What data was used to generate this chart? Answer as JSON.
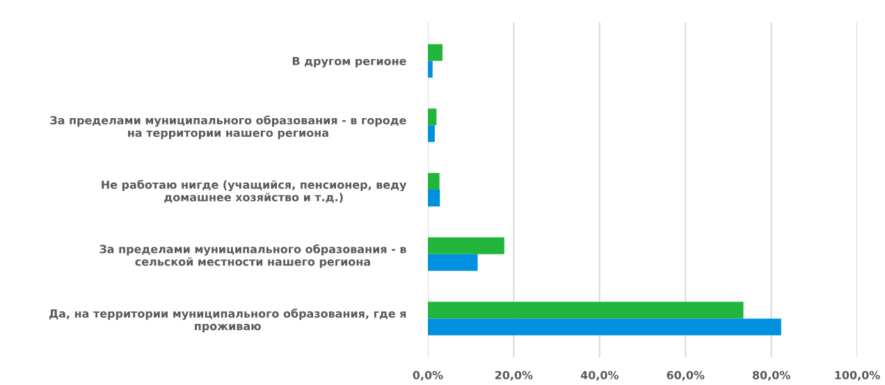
{
  "chart_data": {
    "type": "bar",
    "orientation": "horizontal",
    "categories": [
      "В другом регионе",
      "За пределами муниципального образования - в городе\nна территории нашего региона",
      "Не работаю нигде (учащийся, пенсионер, веду\nдомашнее хозяйство и т.д.)",
      "За пределами муниципального образования - в\nсельской местности нашего региона",
      "Да, на территории муниципального образования, где я\nпроживаю"
    ],
    "series": [
      {
        "color": "#21b53b",
        "values": [
          3.4,
          2.0,
          2.7,
          17.8,
          73.5
        ]
      },
      {
        "color": "#0090e0",
        "values": [
          1.1,
          1.6,
          2.8,
          11.6,
          82.3
        ]
      }
    ],
    "xlim": [
      0,
      100
    ],
    "xticks": [
      {
        "value": 0,
        "label": "0,0%"
      },
      {
        "value": 20,
        "label": "20,0%"
      },
      {
        "value": 40,
        "label": "40,0%"
      },
      {
        "value": 60,
        "label": "60,0%"
      },
      {
        "value": 80,
        "label": "80,0%"
      },
      {
        "value": 100,
        "label": "100,0%"
      }
    ],
    "grid": "x",
    "legend": false
  }
}
